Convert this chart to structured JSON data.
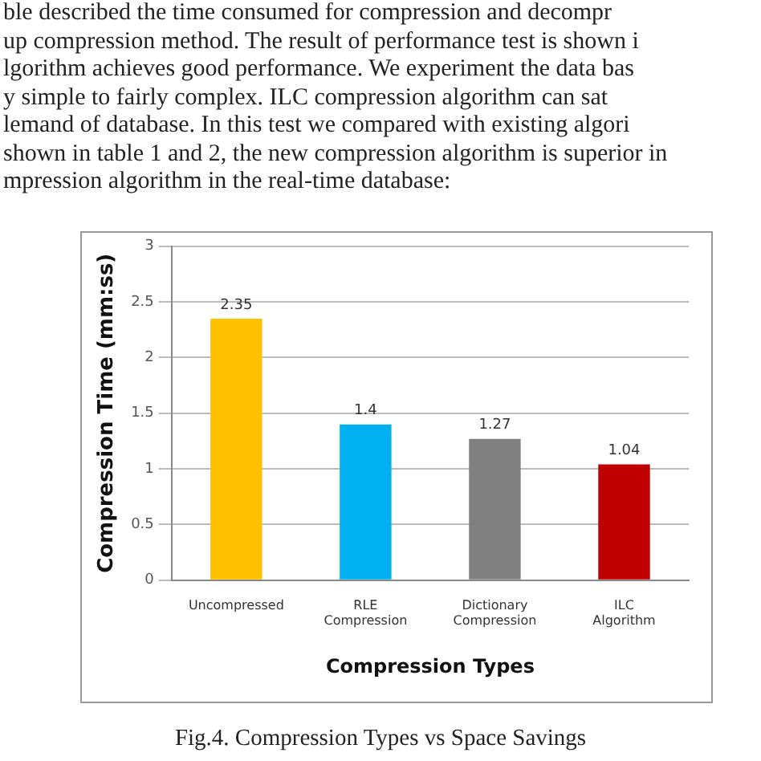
{
  "chart_data": {
    "type": "bar",
    "xlabel": "Compression Types",
    "ylabel": "Compression Time (mm:ss)",
    "categories": [
      "Uncompressed",
      "RLE\nCompression",
      "Dictionary\nCompression",
      "ILC\nAlgorithm"
    ],
    "values": [
      2.35,
      1.4,
      1.27,
      1.04
    ],
    "colors": [
      "#ffc000",
      "#00b0f0",
      "#808080",
      "#c00000"
    ],
    "ylim": [
      0,
      3
    ],
    "yticks": [
      0,
      0.5,
      1,
      1.5,
      2,
      2.5,
      3
    ],
    "grid": "y",
    "legend": false,
    "data_labels": true,
    "annotations": [
      "ble described the time consumed for compression and decompr",
      "up compression method. The result of performance test is shown i",
      "lgorithm achieves good performance. We experiment the data bas",
      "y simple to fairly complex. ILC compression algorithm can sat",
      "lemand of database. In this test we compared with existing algori",
      "shown in table 1 and 2, the new compression algorithm is superior in",
      "mpression algorithm in the real-time database:",
      "Fig.4. Compression Types vs Space Savings"
    ]
  }
}
